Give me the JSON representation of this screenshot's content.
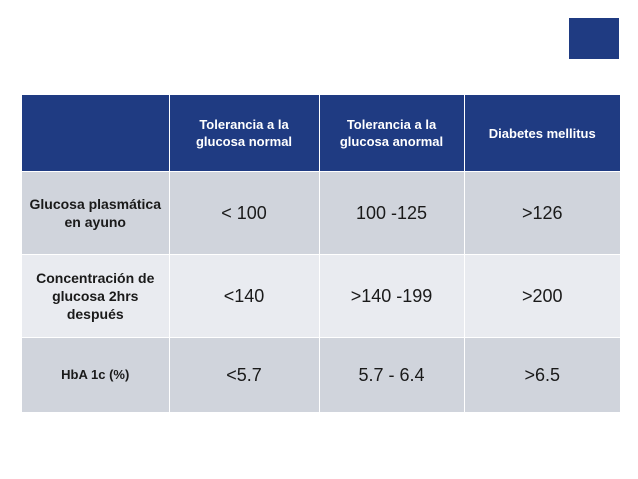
{
  "table": {
    "headers": [
      "",
      "Tolerancia a la glucosa normal",
      "Tolerancia a la glucosa anormal",
      "Diabetes mellitus"
    ],
    "rows": [
      {
        "label": "Glucosa plasmática en ayuno",
        "values": [
          "< 100",
          "100 -125",
          ">126"
        ]
      },
      {
        "label": "Concentración de glucosa 2hrs después",
        "values": [
          "<140",
          ">140 -199",
          ">200"
        ]
      },
      {
        "label": "HbA 1c (%)",
        "values": [
          "<5.7",
          "5.7 - 6.4",
          ">6.5"
        ]
      }
    ]
  },
  "colors": {
    "header_bg": "#1f3b82",
    "row_dark": "#d0d4dc",
    "row_light": "#e9ebf0",
    "corner_box": "#1f3b82"
  }
}
